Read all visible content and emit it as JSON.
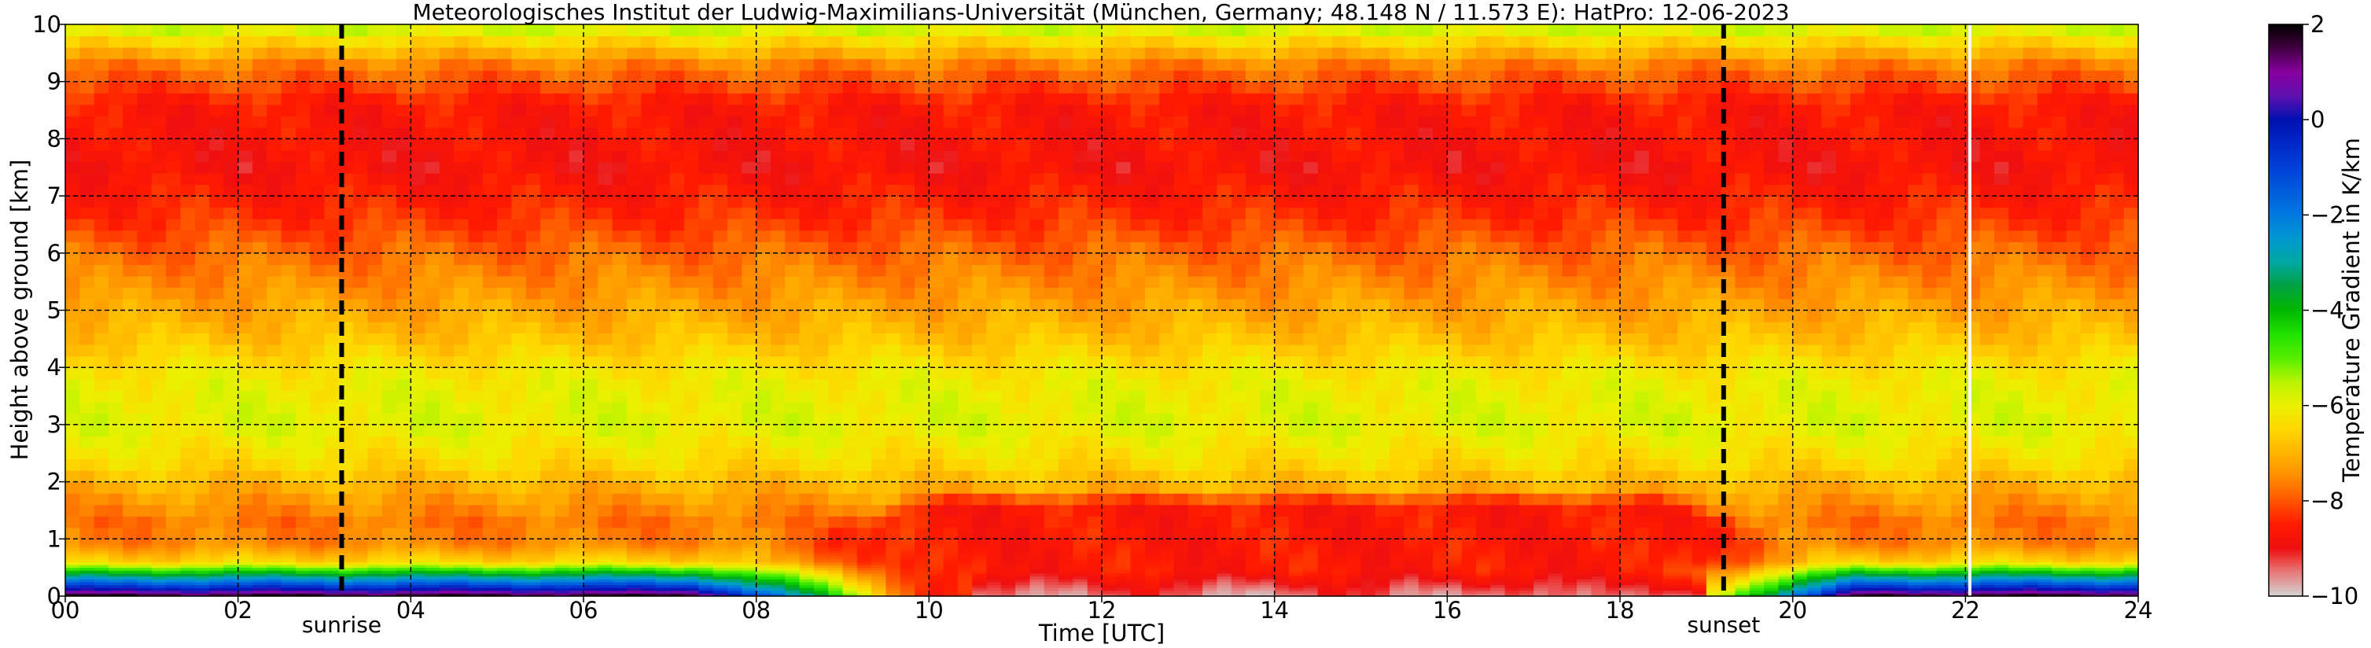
{
  "chart_data": {
    "type": "heatmap",
    "title": "Meteorologisches Institut der Ludwig-Maximilians-Universität (München, Germany; 48.148 N / 11.573 E):    HatPro: 12-06-2023",
    "xlabel": "Time [UTC]",
    "ylabel": "Height above ground [km]",
    "xlim": [
      0,
      24
    ],
    "ylim": [
      0,
      10
    ],
    "x_ticks": [
      0,
      2,
      4,
      6,
      8,
      10,
      12,
      14,
      16,
      18,
      20,
      22,
      24
    ],
    "x_tick_labels": [
      "00",
      "02",
      "04",
      "06",
      "08",
      "10",
      "12",
      "14",
      "16",
      "18",
      "20",
      "22",
      "24"
    ],
    "y_ticks": [
      0,
      1,
      2,
      3,
      4,
      5,
      6,
      7,
      8,
      9,
      10
    ],
    "y_tick_labels": [
      "0",
      "1",
      "2",
      "3",
      "4",
      "5",
      "6",
      "7",
      "8",
      "9",
      "10"
    ],
    "grid": true,
    "colorbar": {
      "label": "Temperature Gradient in K/km",
      "range": [
        -10,
        2
      ],
      "ticks": [
        2,
        0,
        -2,
        -4,
        -6,
        -8,
        -10
      ],
      "tick_labels": [
        "2",
        "0",
        "−2",
        "−4",
        "−6",
        "−8",
        "−10"
      ],
      "colors": {
        "-10": "#d3d3d3",
        "-9.5": "#e87a7a",
        "-9": "#ee1010",
        "-8.5": "#ff1a00",
        "-8": "#ff5500",
        "-7.5": "#ff8c00",
        "-7": "#ffb400",
        "-6.5": "#ffd700",
        "-6": "#ebf000",
        "-5.5": "#b8f400",
        "-5": "#55ee00",
        "-4.5": "#22e000",
        "-4": "#00b800",
        "-3.5": "#00a040",
        "-3": "#00a8a0",
        "-2.5": "#0098d0",
        "-2": "#0078e0",
        "-1": "#0040d8",
        "0": "#0010b0",
        "0.5": "#6010b0",
        "1": "#8800a0",
        "1.5": "#400040",
        "2": "#000000"
      }
    },
    "annotations": [
      {
        "label": "sunrise",
        "x": 3.2
      },
      {
        "label": "sunset",
        "x": 19.2
      }
    ],
    "missing_data_line_x": 22.05,
    "field_profile": [
      {
        "z": 0.0,
        "v": 2.0
      },
      {
        "z": 0.05,
        "v": 1.0
      },
      {
        "z": 0.15,
        "v": -0.5
      },
      {
        "z": 0.3,
        "v": -2.5
      },
      {
        "z": 0.45,
        "v": -4.5
      },
      {
        "z": 0.6,
        "v": -6.5
      },
      {
        "z": 0.9,
        "v": -7.5
      },
      {
        "z": 1.3,
        "v": -7.7
      },
      {
        "z": 1.8,
        "v": -7.2
      },
      {
        "z": 2.3,
        "v": -6.5
      },
      {
        "z": 3.0,
        "v": -5.9
      },
      {
        "z": 3.8,
        "v": -6.1
      },
      {
        "z": 4.5,
        "v": -6.8
      },
      {
        "z": 5.2,
        "v": -7.3
      },
      {
        "z": 6.0,
        "v": -7.8
      },
      {
        "z": 6.6,
        "v": -8.3
      },
      {
        "z": 7.5,
        "v": -8.8
      },
      {
        "z": 8.6,
        "v": -8.6
      },
      {
        "z": 9.3,
        "v": -7.6
      },
      {
        "z": 9.7,
        "v": -6.5
      },
      {
        "z": 10.0,
        "v": -5.5
      }
    ],
    "convective_layer": {
      "start": 7.3,
      "end": 20.8,
      "peak_start": 10.0,
      "peak_end": 18.5,
      "top_km": 1.9,
      "value": -8.6
    },
    "superadiabatic_core": {
      "start": 10.5,
      "end": 19.0,
      "top_km": 0.45,
      "value": -9.7
    }
  }
}
